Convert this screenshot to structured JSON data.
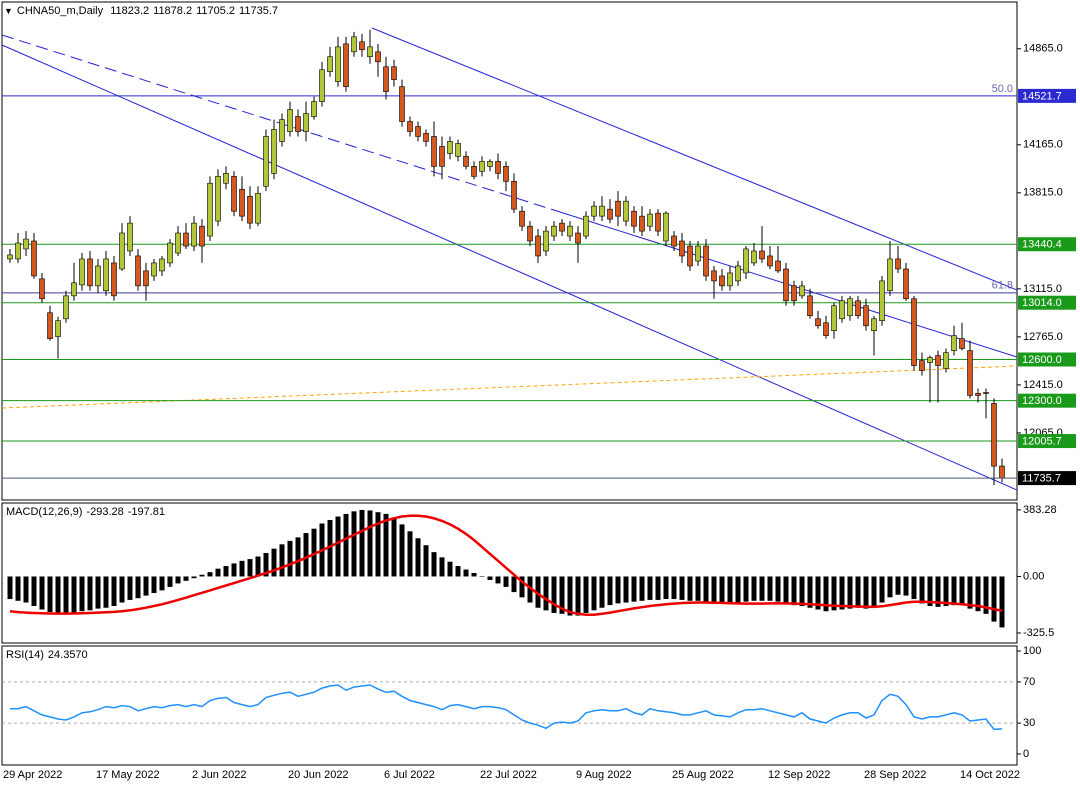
{
  "chart_data": [
    {
      "type": "candlestick",
      "title": "CHNA50_m,Daily",
      "categories": [
        "29 Apr 2022",
        null,
        null,
        null,
        null,
        null,
        null,
        null,
        null,
        null,
        null,
        null,
        "17 May 2022",
        null,
        null,
        null,
        null,
        null,
        null,
        null,
        null,
        null,
        null,
        null,
        "2 Jun 2022",
        null,
        null,
        null,
        null,
        null,
        null,
        null,
        null,
        null,
        null,
        null,
        "20 Jun 2022",
        null,
        null,
        null,
        null,
        null,
        null,
        null,
        null,
        null,
        null,
        null,
        "6 Jul 2022",
        null,
        null,
        null,
        null,
        null,
        null,
        null,
        null,
        null,
        null,
        null,
        "22 Jul 2022",
        null,
        null,
        null,
        null,
        null,
        null,
        null,
        null,
        null,
        null,
        null,
        "9 Aug 2022",
        null,
        null,
        null,
        null,
        null,
        null,
        null,
        null,
        null,
        null,
        null,
        "25 Aug 2022",
        null,
        null,
        null,
        null,
        null,
        null,
        null,
        null,
        null,
        null,
        null,
        "12 Sep 2022",
        null,
        null,
        null,
        null,
        null,
        null,
        null,
        null,
        null,
        null,
        null,
        "28 Sep 2022",
        null,
        null,
        null,
        null,
        null,
        null,
        null,
        null,
        null,
        null,
        null,
        "14 Oct 2022",
        null,
        null,
        null,
        null
      ],
      "open": [
        13333,
        13333,
        13406,
        13464,
        13188,
        12941,
        12767,
        12897,
        13064,
        13144,
        13333,
        13137,
        13101,
        13304,
        13260,
        13391,
        13355,
        13246,
        13209,
        13246,
        13304,
        13376,
        13522,
        13427,
        13572,
        13500,
        13609,
        13885,
        13935,
        13841,
        13790,
        13594,
        13863,
        13957,
        14190,
        14262,
        14371,
        14262,
        14371,
        14480,
        14698,
        14625,
        14901,
        14843,
        14916,
        14807,
        14843,
        14734,
        14734,
        14589,
        14335,
        14298,
        14248,
        14226,
        14153,
        14102,
        14081,
        14081,
        14008,
        13972,
        14008,
        14044,
        14008,
        13899,
        13681,
        13572,
        13500,
        13391,
        13500,
        13594,
        13500,
        13522,
        13500,
        13645,
        13645,
        13696,
        13754,
        13609,
        13681,
        13645,
        13572,
        13667,
        13464,
        13500,
        13464,
        13427,
        13318,
        13427,
        13246,
        13209,
        13137,
        13173,
        13231,
        13304,
        13391,
        13355,
        13318,
        13260,
        13137,
        13064,
        13064,
        12897,
        12868,
        12810,
        12897,
        12919,
        13028,
        12992,
        12810,
        12883,
        13101,
        13333,
        13260,
        13043,
        12592,
        12578,
        12629,
        12534,
        12665,
        12752,
        12665,
        12353,
        12360,
        12280,
        11823.2
      ],
      "high": [
        13406,
        13522,
        13536,
        13522,
        13231,
        12992,
        12912,
        13101,
        13304,
        13376,
        13391,
        13333,
        13391,
        13355,
        13594,
        13645,
        13406,
        13304,
        13333,
        13355,
        13478,
        13572,
        13594,
        13645,
        13623,
        13935,
        13986,
        14008,
        13972,
        13935,
        13863,
        13863,
        14277,
        14349,
        14393,
        14480,
        14422,
        14480,
        14516,
        14770,
        14879,
        14952,
        14952,
        14988,
        14974,
        15003,
        14901,
        14807,
        14785,
        14640,
        14371,
        14335,
        14277,
        14335,
        14226,
        14226,
        14204,
        14117,
        14044,
        14081,
        14059,
        14102,
        14044,
        13957,
        13718,
        13609,
        13551,
        13572,
        13609,
        13623,
        13609,
        13572,
        13681,
        13754,
        13790,
        13769,
        13827,
        13790,
        13718,
        13718,
        13696,
        13696,
        13681,
        13536,
        13522,
        13464,
        13464,
        13478,
        13282,
        13260,
        13282,
        13318,
        13427,
        13449,
        13572,
        13427,
        13427,
        13304,
        13173,
        13173,
        13115,
        12955,
        12919,
        13013,
        13064,
        13064,
        13064,
        13043,
        12919,
        13209,
        13464,
        13427,
        13304,
        13064,
        12650,
        12629,
        12665,
        12680,
        12846,
        12868,
        12738,
        12389,
        12389,
        12317,
        11878.2
      ],
      "low": [
        13304,
        13304,
        13355,
        13188,
        13013,
        12738,
        12607,
        12868,
        13028,
        13101,
        13101,
        13086,
        13064,
        13028,
        13246,
        13355,
        13101,
        13028,
        13173,
        13209,
        13275,
        13355,
        13406,
        13391,
        13304,
        13464,
        13572,
        13841,
        13645,
        13609,
        13551,
        13572,
        13827,
        13914,
        14153,
        14226,
        14226,
        14190,
        14349,
        14444,
        14661,
        14589,
        14553,
        14807,
        14807,
        14756,
        14661,
        14495,
        14589,
        14298,
        14226,
        14190,
        14153,
        13935,
        13914,
        14059,
        14044,
        13986,
        13914,
        13935,
        13972,
        13914,
        13827,
        13667,
        13536,
        13427,
        13304,
        13355,
        13464,
        13500,
        13464,
        13304,
        13478,
        13609,
        13609,
        13594,
        13572,
        13572,
        13522,
        13500,
        13536,
        13500,
        13427,
        13391,
        13304,
        13246,
        13282,
        13173,
        13043,
        13101,
        13101,
        13137,
        13188,
        13282,
        13304,
        13260,
        13231,
        12992,
        12992,
        13043,
        12897,
        12825,
        12752,
        12752,
        12868,
        12883,
        12897,
        12810,
        12629,
        12846,
        13064,
        13231,
        13028,
        12520,
        12483,
        12287,
        12287,
        12505,
        12629,
        12665,
        12317,
        12287,
        12171,
        11685,
        11705.2
      ],
      "close": [
        13362,
        13449,
        13478,
        13209,
        13043,
        12752,
        12883,
        13064,
        13159,
        13333,
        13137,
        13282,
        13333,
        13064,
        13522,
        13594,
        13137,
        13137,
        13304,
        13333,
        13449,
        13522,
        13427,
        13594,
        13427,
        13885,
        13935,
        13957,
        13681,
        13645,
        13594,
        13812,
        14226,
        14277,
        14349,
        14422,
        14262,
        14393,
        14480,
        14712,
        14807,
        14879,
        14589,
        14952,
        14858,
        14879,
        14770,
        14553,
        14640,
        14335,
        14262,
        14226,
        14190,
        14008,
        14008,
        14190,
        14175,
        14008,
        13935,
        14044,
        14044,
        13957,
        13899,
        13696,
        13572,
        13464,
        13355,
        13536,
        13572,
        13536,
        13572,
        13449,
        13645,
        13718,
        13718,
        13623,
        13645,
        13754,
        13572,
        13536,
        13660,
        13536,
        13667,
        13427,
        13355,
        13282,
        13427,
        13209,
        13173,
        13137,
        13231,
        13282,
        13406,
        13391,
        13333,
        13282,
        13246,
        13028,
        13028,
        13137,
        12919,
        12846,
        12774,
        12992,
        13028,
        13043,
        12919,
        12846,
        12897,
        13173,
        13333,
        13260,
        13043,
        12556,
        12520,
        12614,
        12556,
        12650,
        12774,
        12680,
        12338,
        12338,
        12353,
        11823,
        11735.7
      ],
      "up_color": "#b3c63a",
      "down_color": "#d4581f",
      "wick_color": "#000000",
      "price_line_color": "#4a5a78",
      "ylim": [
        11576,
        15206
      ],
      "yticks": [
        {
          "value": 14865,
          "label": "14865.0"
        },
        {
          "value": 14165,
          "label": "14165.0"
        },
        {
          "value": 13815,
          "label": "13815.0"
        },
        {
          "value": 13115,
          "label": "13115.0"
        },
        {
          "value": 12765,
          "label": "12765.0"
        },
        {
          "value": 12415,
          "label": "12415.0"
        },
        {
          "value": 12065,
          "label": "12065.0"
        }
      ],
      "levels": [
        {
          "value": 14521.7,
          "label": "14521.7",
          "color": "#2a2ad0",
          "fib": "50.0"
        },
        {
          "value": 13086,
          "color": "#3a3aa0",
          "fib": "61.8"
        },
        {
          "value": 13440.4,
          "label": "13440.4",
          "color": "#1a9a1a"
        },
        {
          "value": 13014,
          "label": "13014.0",
          "color": "#1a9a1a"
        },
        {
          "value": 12600,
          "label": "12600.0",
          "color": "#1a9a1a"
        },
        {
          "value": 12300,
          "label": "12300.0",
          "color": "#1a9a1a"
        },
        {
          "value": 12005.7,
          "label": "12005.7",
          "color": "#1a9a1a"
        }
      ]
    },
    {
      "type": "macd",
      "title": "MACD(12,26,9)",
      "values": [
        -130,
        -140,
        -150,
        -170,
        -190,
        -205,
        -215,
        -215,
        -210,
        -200,
        -195,
        -185,
        -180,
        -170,
        -150,
        -135,
        -125,
        -110,
        -95,
        -80,
        -60,
        -40,
        -25,
        -10,
        10,
        25,
        45,
        60,
        75,
        90,
        100,
        115,
        135,
        160,
        185,
        205,
        225,
        250,
        275,
        305,
        325,
        345,
        360,
        375,
        383,
        380,
        370,
        360,
        340,
        300,
        260,
        220,
        180,
        140,
        110,
        85,
        60,
        40,
        20,
        0,
        -20,
        -40,
        -60,
        -90,
        -120,
        -150,
        -180,
        -195,
        -210,
        -215,
        -225,
        -225,
        -210,
        -195,
        -180,
        -165,
        -155,
        -150,
        -145,
        -140,
        -135,
        -135,
        -130,
        -130,
        -135,
        -140,
        -140,
        -145,
        -150,
        -150,
        -155,
        -150,
        -145,
        -140,
        -140,
        -140,
        -145,
        -155,
        -165,
        -170,
        -180,
        -190,
        -200,
        -195,
        -190,
        -185,
        -180,
        -185,
        -175,
        -150,
        -120,
        -105,
        -110,
        -130,
        -155,
        -170,
        -175,
        -170,
        -165,
        -165,
        -185,
        -200,
        -215,
        -260,
        -293.28
      ],
      "signal": [
        -200,
        -205,
        -208,
        -210,
        -212,
        -213,
        -214,
        -214,
        -213,
        -212,
        -210,
        -208,
        -206,
        -204,
        -200,
        -195,
        -188,
        -180,
        -170,
        -160,
        -148,
        -135,
        -122,
        -108,
        -94,
        -80,
        -66,
        -52,
        -38,
        -24,
        -10,
        5,
        20,
        35,
        52,
        70,
        88,
        108,
        128,
        150,
        172,
        195,
        218,
        240,
        262,
        285,
        305,
        322,
        335,
        345,
        350,
        350,
        345,
        335,
        320,
        300,
        275,
        245,
        210,
        170,
        130,
        90,
        50,
        10,
        -30,
        -65,
        -100,
        -130,
        -160,
        -185,
        -205,
        -215,
        -220,
        -220,
        -215,
        -208,
        -200,
        -192,
        -184,
        -177,
        -170,
        -165,
        -160,
        -156,
        -153,
        -151,
        -150,
        -150,
        -151,
        -152,
        -154,
        -155,
        -156,
        -156,
        -156,
        -155,
        -155,
        -155,
        -156,
        -158,
        -160,
        -163,
        -166,
        -168,
        -170,
        -172,
        -173,
        -174,
        -175,
        -172,
        -165,
        -158,
        -150,
        -145,
        -145,
        -147,
        -150,
        -153,
        -156,
        -160,
        -165,
        -170,
        -178,
        -188,
        -197.81
      ],
      "color": "#000000",
      "signal_color": "#ee0000",
      "ylim": [
        -383,
        423
      ],
      "yticks": [
        383.28,
        {
          "value": 0,
          "label": "0.00"
        },
        -325.5
      ]
    },
    {
      "type": "line",
      "title": "RSI(14)",
      "values": [
        44,
        44,
        46,
        42,
        38,
        36,
        34,
        33,
        36,
        40,
        41,
        43,
        46,
        45,
        47,
        46,
        42,
        44,
        46,
        45,
        47,
        48,
        46,
        48,
        46,
        52,
        54,
        55,
        50,
        48,
        46,
        48,
        55,
        57,
        59,
        60,
        56,
        58,
        60,
        64,
        66,
        67,
        62,
        65,
        66,
        67,
        63,
        60,
        61,
        56,
        52,
        50,
        48,
        46,
        43,
        47,
        48,
        46,
        44,
        46,
        46,
        45,
        43,
        38,
        33,
        30,
        28,
        25,
        30,
        31,
        30,
        32,
        40,
        42,
        43,
        42,
        42,
        44,
        40,
        38,
        44,
        42,
        41,
        40,
        38,
        38,
        40,
        42,
        38,
        37,
        36,
        40,
        43,
        43,
        44,
        42,
        40,
        38,
        36,
        40,
        34,
        32,
        30,
        35,
        38,
        40,
        40,
        35,
        38,
        52,
        58,
        56,
        48,
        36,
        34,
        36,
        36,
        38,
        40,
        38,
        32,
        33,
        34,
        24,
        24.357
      ],
      "value_labels": [
        null,
        null,
        null,
        null,
        null,
        null,
        null,
        null,
        null,
        null,
        null,
        null,
        null,
        null,
        null,
        null,
        null,
        null,
        null,
        null,
        null,
        null,
        null,
        null,
        null,
        null,
        null,
        null,
        null,
        null,
        null,
        null,
        null,
        null,
        null,
        null,
        null,
        null,
        null,
        null,
        null,
        null,
        null,
        null,
        null,
        null,
        null,
        null,
        null,
        null,
        null,
        null,
        null,
        null,
        null,
        null,
        null,
        null,
        null,
        null,
        null,
        null,
        null,
        null,
        null,
        null,
        null,
        null,
        null,
        null,
        null,
        null,
        null,
        null,
        null,
        null,
        null,
        null,
        null,
        null,
        null,
        null,
        null,
        null,
        null,
        null,
        null,
        null,
        null,
        null,
        null,
        null,
        null,
        null,
        null,
        null,
        null,
        null,
        null,
        null,
        null,
        null,
        null,
        null,
        null,
        null,
        null,
        null,
        null,
        null,
        null,
        null,
        null,
        null,
        null,
        null,
        null,
        null,
        null,
        null,
        null,
        null,
        null,
        null,
        "24.3570"
      ],
      "color": "#1e90ff",
      "ylim": [
        -10.7,
        104.9
      ],
      "yticks": [
        100,
        70,
        30,
        0
      ],
      "levels": [
        70,
        30
      ]
    }
  ]
}
